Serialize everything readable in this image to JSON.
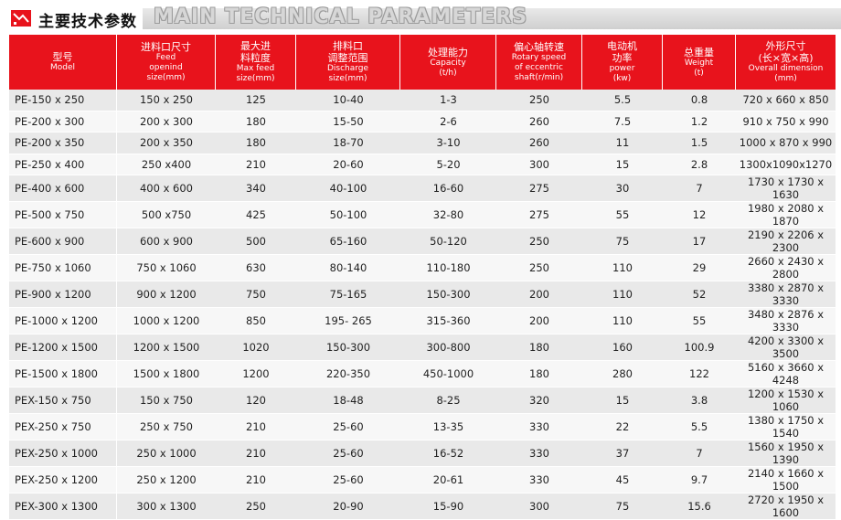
{
  "header": {
    "title_cn": "主要技术参数",
    "title_en": "MAIN TECHNICAL PARAMETERS",
    "accent_color": "#e8131c"
  },
  "columns": [
    {
      "cn": "型号",
      "en": [
        "Model"
      ]
    },
    {
      "cn": "进料口尺寸",
      "en": [
        "Feed",
        "openind",
        "size(mm)"
      ]
    },
    {
      "cn": "最大进",
      "cn2": "料粒度",
      "en": [
        "Max feed",
        "size(mm)"
      ]
    },
    {
      "cn": "排料口",
      "cn2": "调整范围",
      "en": [
        "Discharge",
        "size(mm)"
      ]
    },
    {
      "cn": "处理能力",
      "en": [
        "Capacity",
        "(t/h)"
      ]
    },
    {
      "cn": "偏心轴转速",
      "en": [
        "Rotary speed",
        "of eccentric",
        "shaft(r/min)"
      ]
    },
    {
      "cn": "电动机",
      "cn2": "功率",
      "en": [
        "power",
        "(kw)"
      ]
    },
    {
      "cn": "总重量",
      "en": [
        "Weight",
        "(t)"
      ]
    },
    {
      "cn": "外形尺寸",
      "cn2": "(长×宽×高)",
      "en": [
        "Overall dimension",
        "(mm)"
      ]
    }
  ],
  "rows": [
    [
      "PE-150 x 250",
      "150 x 250",
      "125",
      "10-40",
      "1-3",
      "250",
      "5.5",
      "0.8",
      "720 x 660 x 850"
    ],
    [
      "PE-200 x 300",
      "200 x 300",
      "180",
      "15-50",
      "2-6",
      "260",
      "7.5",
      "1.2",
      "910 x 750 x 990"
    ],
    [
      "PE-200 x 350",
      "200 x 350",
      "180",
      "18-70",
      "3-10",
      "260",
      "11",
      "1.5",
      "1000 x 870 x 990"
    ],
    [
      "PE-250 x 400",
      "250 x400",
      "210",
      "20-60",
      "5-20",
      "300",
      "15",
      "2.8",
      "1300x1090x1270"
    ],
    [
      "PE-400 x 600",
      "400 x 600",
      "340",
      "40-100",
      "16-60",
      "275",
      "30",
      "7",
      "1730 x 1730 x 1630"
    ],
    [
      "PE-500 x 750",
      "500 x750",
      "425",
      "50-100",
      "32-80",
      "275",
      "55",
      "12",
      "1980 x 2080 x 1870"
    ],
    [
      "PE-600 x 900",
      "600 x 900",
      "500",
      "65-160",
      "50-120",
      "250",
      "75",
      "17",
      "2190 x 2206 x 2300"
    ],
    [
      "PE-750 x 1060",
      "750 x 1060",
      "630",
      "80-140",
      "110-180",
      "250",
      "110",
      "29",
      "2660 x 2430 x 2800"
    ],
    [
      "PE-900 x 1200",
      "900 x 1200",
      "750",
      "75-165",
      "150-300",
      "200",
      "110",
      "52",
      "3380 x 2870 x 3330"
    ],
    [
      "PE-1000 x 1200",
      "1000 x 1200",
      "850",
      "195- 265",
      "315-360",
      "200",
      "110",
      "55",
      "3480 x 2876 x 3330"
    ],
    [
      "PE-1200 x 1500",
      "1200 x 1500",
      "1020",
      "150-300",
      "300-800",
      "180",
      "160",
      "100.9",
      "4200 x 3300 x 3500"
    ],
    [
      "PE-1500 x 1800",
      "1500 x 1800",
      "1200",
      "220-350",
      "450-1000",
      "180",
      "280",
      "122",
      "5160 x 3660 x 4248"
    ],
    [
      "PEX-150 x 750",
      "150 x 750",
      "120",
      "18-48",
      "8-25",
      "320",
      "15",
      "3.8",
      "1200 x 1530 x 1060"
    ],
    [
      "PEX-250 x 750",
      "250 x 750",
      "210",
      "25-60",
      "13-35",
      "330",
      "22",
      "5.5",
      "1380 x 1750 x 1540"
    ],
    [
      "PEX-250 x 1000",
      "250 x 1000",
      "210",
      "25-60",
      "16-52",
      "330",
      "37",
      "7",
      "1560 x 1950 x 1390"
    ],
    [
      "PEX-250 x 1200",
      "250 x 1200",
      "210",
      "25-60",
      "20-61",
      "330",
      "45",
      "9.7",
      "2140 x 1660 x 1500"
    ],
    [
      "PEX-300 x 1300",
      "300 x 1300",
      "250",
      "20-90",
      "15-90",
      "300",
      "75",
      "15.6",
      "2720 x 1950 x 1600"
    ]
  ]
}
